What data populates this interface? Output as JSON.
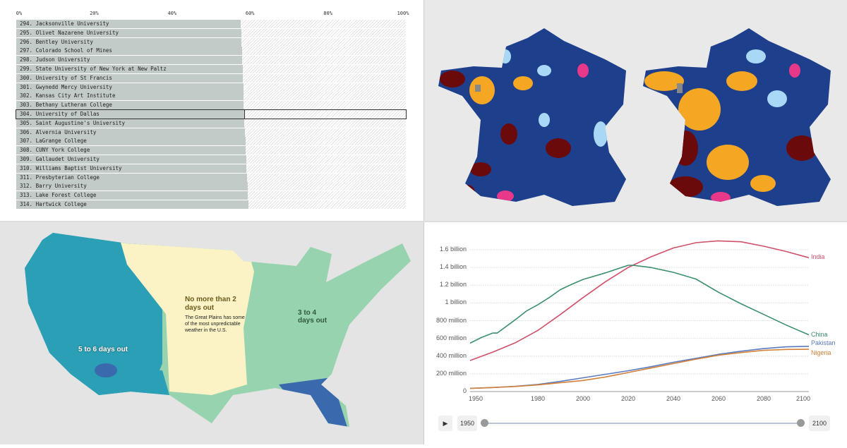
{
  "ranking_chart": {
    "axis_ticks": [
      "0%",
      "20%",
      "40%",
      "60%",
      "80%",
      "100%"
    ],
    "highlighted": "304. University of Dallas",
    "rows": [
      {
        "label": "294. Jacksonville University",
        "value": 57.6
      },
      {
        "label": "295. Olivet Nazarene University",
        "value": 57.7
      },
      {
        "label": "296. Bentley University",
        "value": 57.8
      },
      {
        "label": "297. Colorado School of Mines",
        "value": 57.9
      },
      {
        "label": "298. Judson University",
        "value": 58.0
      },
      {
        "label": "299. State University of New York at New Paltz",
        "value": 58.1
      },
      {
        "label": "300. University of St Francis",
        "value": 58.2
      },
      {
        "label": "301. Gwynedd Mercy University",
        "value": 58.3
      },
      {
        "label": "302. Kansas City Art Institute",
        "value": 58.3
      },
      {
        "label": "303. Bethany Lutheran College",
        "value": 58.4
      },
      {
        "label": "304. University of Dallas",
        "value": 58.5
      },
      {
        "label": "305. Saint Augustine's University",
        "value": 58.6
      },
      {
        "label": "306. Alvernia University",
        "value": 58.7
      },
      {
        "label": "307. LaGrange College",
        "value": 58.8
      },
      {
        "label": "308. CUNY York College",
        "value": 58.9
      },
      {
        "label": "309. Gallaudet University",
        "value": 59.0
      },
      {
        "label": "310. Williams Baptist University",
        "value": 59.1
      },
      {
        "label": "311. Presbyterian College",
        "value": 59.2
      },
      {
        "label": "312. Barry University",
        "value": 59.4
      },
      {
        "label": "313. Lake Forest College",
        "value": 59.5
      },
      {
        "label": "314. Hartwick College",
        "value": 59.6
      }
    ]
  },
  "france_maps": {
    "colors": {
      "main": "#1d3f8c",
      "light_blue": "#a8d8f5",
      "orange": "#f5a623",
      "maroon": "#6b0a0a",
      "pink": "#e8388a",
      "gray": "#888888"
    }
  },
  "us_map": {
    "labels": {
      "plains_title": "No more than 2 days out",
      "plains_note": "The Great Plains has some of the most unpredictable weather in the U.S.",
      "east": "3 to 4 days out",
      "west": "5 to 6 days out"
    },
    "colors": {
      "plains": "#fbf3c6",
      "green": "#97d3ae",
      "teal": "#2b9fb5",
      "dark": "#3a6aad"
    }
  },
  "chart_data": {
    "type": "line",
    "title": "",
    "xlabel": "",
    "ylabel": "",
    "xlim": [
      1950,
      2100
    ],
    "ylim": [
      0,
      1700000000
    ],
    "x_ticks": [
      "1950",
      "1980",
      "2000",
      "2020",
      "2040",
      "2060",
      "2080",
      "2100"
    ],
    "y_ticks": [
      {
        "value": 0,
        "label": "0"
      },
      {
        "value": 200000000,
        "label": "200 million"
      },
      {
        "value": 400000000,
        "label": "400 million"
      },
      {
        "value": 600000000,
        "label": "600 million"
      },
      {
        "value": 800000000,
        "label": "800 million"
      },
      {
        "value": 1000000000,
        "label": "1 billion"
      },
      {
        "value": 1200000000,
        "label": "1.2 billion"
      },
      {
        "value": 1400000000,
        "label": "1.4 billion"
      },
      {
        "value": 1600000000,
        "label": "1.6 billion"
      }
    ],
    "grid": true,
    "series": [
      {
        "name": "India",
        "color": "#d0506a",
        "x": [
          1950,
          1960,
          1970,
          1980,
          1990,
          2000,
          2010,
          2020,
          2030,
          2040,
          2050,
          2060,
          2070,
          2080,
          2090,
          2100
        ],
        "y": [
          350,
          445,
          550,
          690,
          870,
          1060,
          1240,
          1400,
          1520,
          1620,
          1680,
          1700,
          1690,
          1640,
          1580,
          1510
        ]
      },
      {
        "name": "China",
        "color": "#3d8f6e",
        "x": [
          1950,
          1955,
          1960,
          1962,
          1970,
          1975,
          1980,
          1985,
          1990,
          1995,
          2000,
          2010,
          2020,
          2022,
          2030,
          2040,
          2050,
          2060,
          2070,
          2080,
          2090,
          2100
        ],
        "y": [
          546,
          610,
          660,
          660,
          810,
          910,
          980,
          1060,
          1150,
          1210,
          1265,
          1340,
          1425,
          1425,
          1400,
          1345,
          1270,
          1120,
          990,
          870,
          750,
          640
        ]
      },
      {
        "name": "Pakistan",
        "color": "#5a7bbd",
        "x": [
          1950,
          1960,
          1970,
          1980,
          1990,
          2000,
          2010,
          2020,
          2030,
          2040,
          2050,
          2060,
          2070,
          2080,
          2090,
          2100
        ],
        "y": [
          37,
          45,
          60,
          80,
          115,
          155,
          195,
          235,
          280,
          330,
          375,
          420,
          455,
          485,
          505,
          510
        ]
      },
      {
        "name": "Nigeria",
        "color": "#d4813a",
        "x": [
          1950,
          1960,
          1970,
          1980,
          1990,
          2000,
          2010,
          2020,
          2030,
          2040,
          2050,
          2060,
          2070,
          2080,
          2090,
          2100
        ],
        "y": [
          35,
          45,
          57,
          75,
          100,
          125,
          165,
          215,
          265,
          315,
          365,
          410,
          440,
          465,
          475,
          478
        ]
      }
    ],
    "y_unit_note": "values in millions",
    "controls": {
      "start": "1950",
      "end": "2100",
      "range": [
        1950,
        2100
      ]
    }
  }
}
